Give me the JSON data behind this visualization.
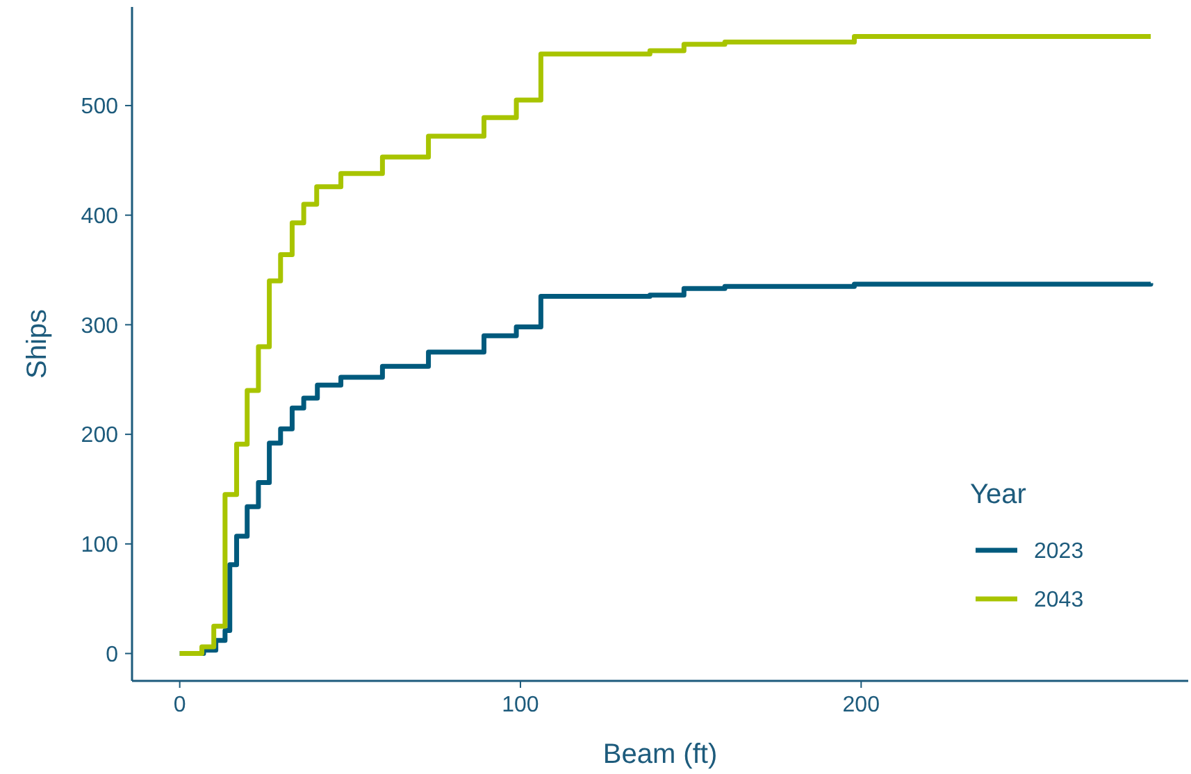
{
  "chart_data": {
    "type": "step",
    "xlabel": "Beam (ft)",
    "ylabel": "Ships",
    "legend_title": "Year",
    "legend": "bottom right",
    "grid": false,
    "xlim": [
      -14,
      296
    ],
    "ylim": [
      -25,
      590
    ],
    "xticks": [
      0,
      100,
      200
    ],
    "yticks": [
      0,
      100,
      200,
      300,
      400,
      500
    ],
    "series": [
      {
        "name": "2023",
        "color": "#005a7d",
        "x": [
          0,
          7,
          10.6,
          13.3,
          14.7,
          16.7,
          19.8,
          23.1,
          26.3,
          29.6,
          33,
          36.4,
          40.4,
          47.3,
          59.5,
          73,
          89.3,
          98.8,
          106,
          138,
          148,
          160,
          198,
          285
        ],
        "values": [
          0,
          3,
          12,
          21,
          81,
          107,
          134,
          156,
          192,
          205,
          224,
          233,
          245,
          252,
          262,
          275,
          290,
          298,
          326,
          327,
          333,
          335,
          337,
          338
        ]
      },
      {
        "name": "2043",
        "color": "#a8c400",
        "x": [
          0,
          6.5,
          10,
          13.3,
          16.7,
          19.8,
          23.1,
          26.3,
          29.6,
          33,
          36.4,
          40.2,
          47.3,
          59.5,
          73,
          89.3,
          98.8,
          106,
          138,
          148,
          160,
          198,
          285
        ],
        "values": [
          0,
          6,
          25,
          145,
          191,
          240,
          280,
          340,
          364,
          393,
          410,
          426,
          438,
          453,
          472,
          489,
          505,
          547,
          550,
          556,
          558,
          563,
          563
        ]
      }
    ]
  }
}
